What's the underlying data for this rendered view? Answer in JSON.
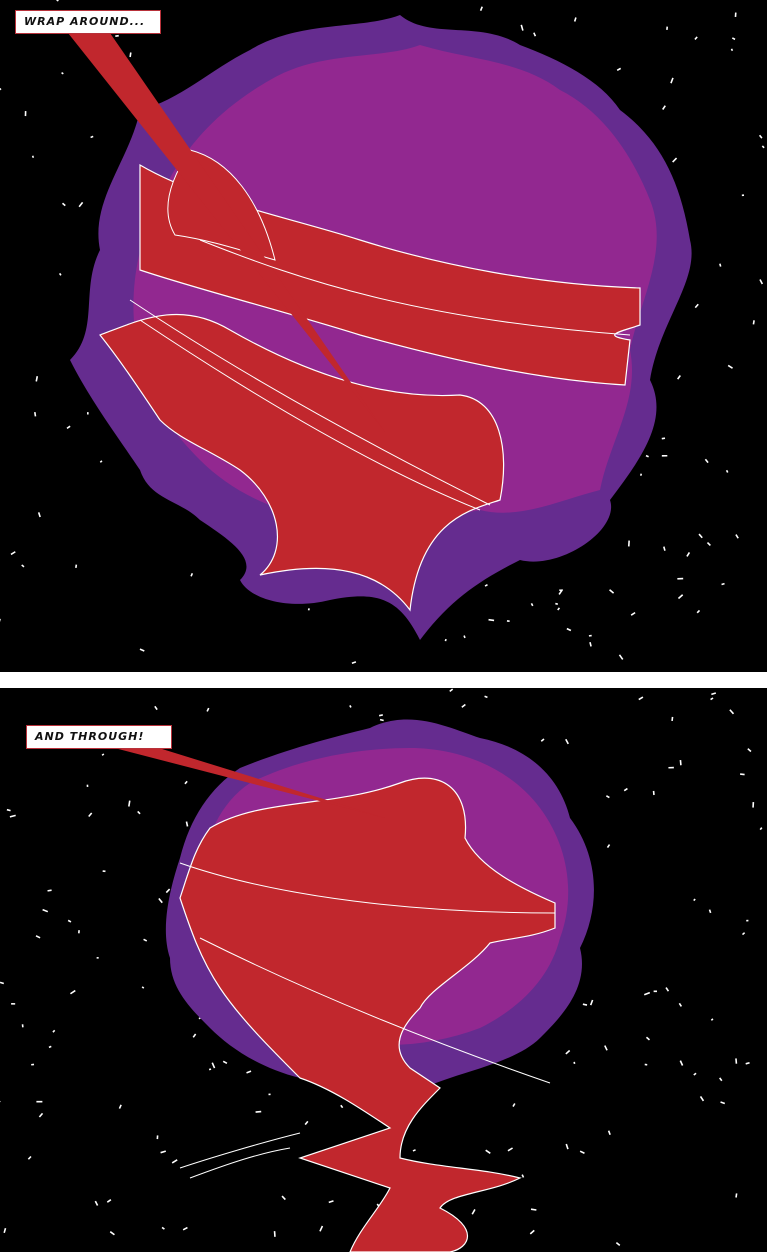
{
  "panels": [
    {
      "caption": "WRAP AROUND..."
    },
    {
      "caption": "AND THROUGH!"
    }
  ],
  "colors": {
    "background": "#000000",
    "planet_outer": "#652c8f",
    "planet_inner": "#922890",
    "ribbon": "#c1272d",
    "caption_border": "#b8313a",
    "stars": "#ffffff"
  }
}
